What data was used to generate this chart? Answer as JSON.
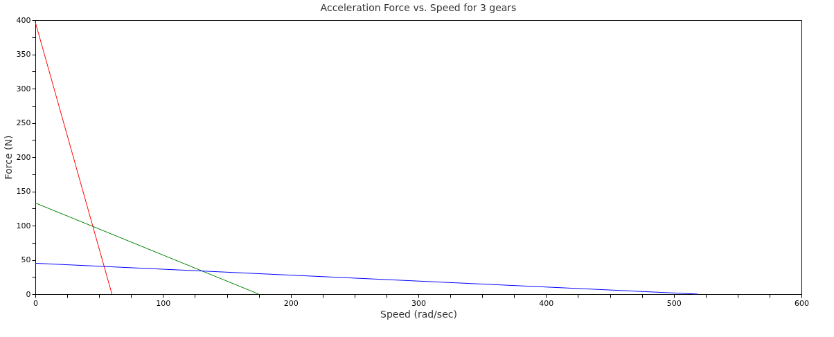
{
  "chart_data": {
    "type": "line",
    "title": "Acceleration Force vs. Speed for 3 gears",
    "xlabel": "Speed (rad/sec)",
    "ylabel": "Force (N)",
    "series": [
      {
        "color": "#ff0000",
        "x": [
          0,
          60
        ],
        "values": [
          397,
          0
        ]
      },
      {
        "color": "#008000",
        "x": [
          0,
          175
        ],
        "values": [
          133,
          0
        ]
      },
      {
        "color": "#0000ff",
        "x": [
          0,
          519
        ],
        "values": [
          45,
          0
        ]
      }
    ],
    "xlim": [
      0,
      600
    ],
    "ylim": [
      0,
      400
    ],
    "xticks": [
      0,
      {
        "value": 25,
        "label": null
      },
      {
        "value": 50,
        "label": null
      },
      {
        "value": 75,
        "label": null
      },
      100,
      {
        "value": 125,
        "label": null
      },
      {
        "value": 150,
        "label": null
      },
      {
        "value": 175,
        "label": null
      },
      200,
      {
        "value": 225,
        "label": null
      },
      {
        "value": 250,
        "label": null
      },
      {
        "value": 275,
        "label": null
      },
      300,
      {
        "value": 325,
        "label": null
      },
      {
        "value": 350,
        "label": null
      },
      {
        "value": 375,
        "label": null
      },
      400,
      {
        "value": 425,
        "label": null
      },
      {
        "value": 450,
        "label": null
      },
      {
        "value": 475,
        "label": null
      },
      500,
      {
        "value": 525,
        "label": null
      },
      {
        "value": 550,
        "label": null
      },
      {
        "value": 575,
        "label": null
      },
      600
    ],
    "yticks": [
      0,
      {
        "value": 25,
        "label": null
      },
      50,
      {
        "value": 75,
        "label": null
      },
      100,
      {
        "value": 125,
        "label": null
      },
      150,
      {
        "value": 175,
        "label": null
      },
      200,
      {
        "value": 225,
        "label": null
      },
      250,
      {
        "value": 275,
        "label": null
      },
      300,
      {
        "value": 325,
        "label": null
      },
      350,
      {
        "value": 375,
        "label": null
      },
      400
    ],
    "grid": false,
    "legend": false,
    "marker": "none",
    "line_style": "solid"
  }
}
